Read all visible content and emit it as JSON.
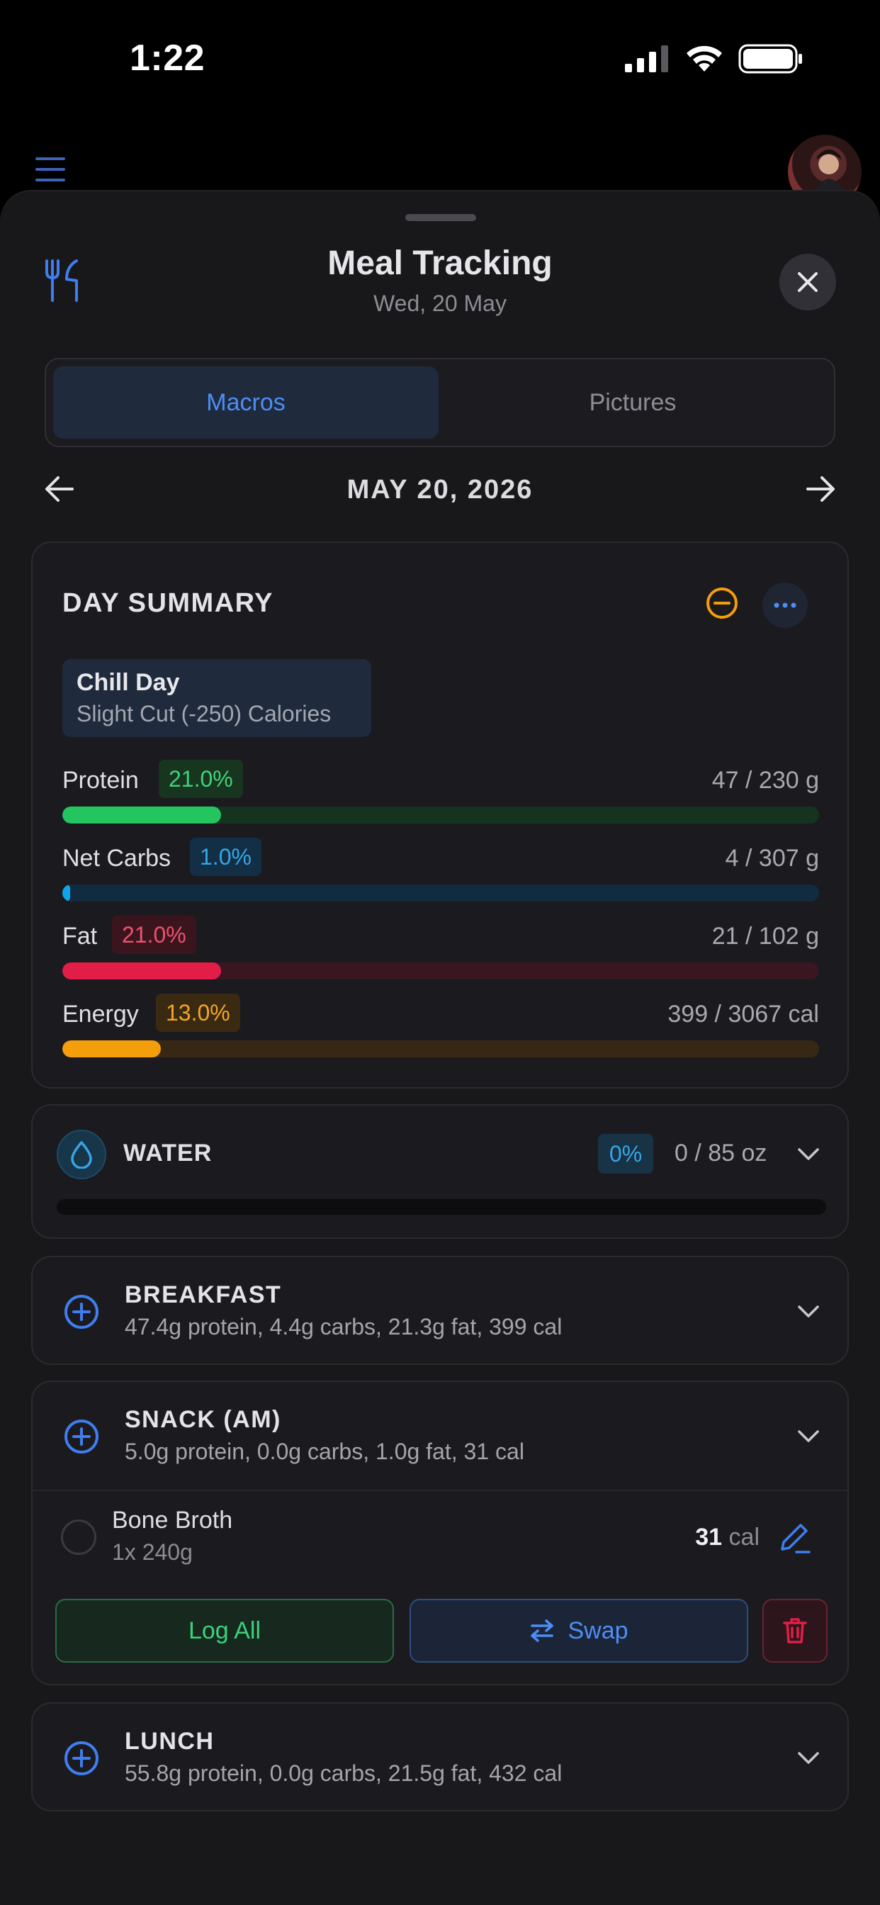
{
  "status_bar": {
    "time": "1:22"
  },
  "header": {
    "title": "Meal Tracking",
    "subtitle": "Wed, 20 May"
  },
  "tabs": [
    {
      "label": "Macros",
      "active": true
    },
    {
      "label": "Pictures",
      "active": false
    }
  ],
  "date_nav": {
    "date": "MAY 20, 2026"
  },
  "day_summary": {
    "title": "DAY SUMMARY",
    "plan_name": "Chill Day",
    "plan_desc": "Slight Cut (-250) Calories",
    "macros": [
      {
        "label": "Protein",
        "percent": "21.0%",
        "value": "47 / 230 g",
        "fill": 0.21,
        "color": "#22c55e"
      },
      {
        "label": "Net Carbs",
        "percent": "1.0%",
        "value": "4 / 307 g",
        "fill": 0.01,
        "color": "#0ea5e9"
      },
      {
        "label": "Fat",
        "percent": "21.0%",
        "value": "21 / 102 g",
        "fill": 0.21,
        "color": "#e11d48"
      },
      {
        "label": "Energy",
        "percent": "13.0%",
        "value": "399 / 3067 cal",
        "fill": 0.13,
        "color": "#f59e0b"
      }
    ]
  },
  "water": {
    "label": "WATER",
    "percent": "0%",
    "value": "0 / 85 oz",
    "fill": 0
  },
  "meals": {
    "breakfast": {
      "name": "BREAKFAST",
      "summary": "47.4g protein, 4.4g carbs, 21.3g fat, 399 cal"
    },
    "snack_am": {
      "name": "SNACK (AM)",
      "summary": "5.0g protein, 0.0g carbs, 1.0g fat, 31 cal",
      "items": [
        {
          "name": "Bone Broth",
          "qty": "1x 240g",
          "cal": "31",
          "cal_unit": "cal"
        }
      ],
      "actions": {
        "log_all": "Log All",
        "swap": "Swap"
      }
    },
    "lunch": {
      "name": "LUNCH",
      "summary": "55.8g protein, 0.0g carbs, 21.5g fat, 432 cal"
    }
  },
  "colors": {
    "accent": "#4d8ef5",
    "protein": "#22c55e",
    "carbs": "#0ea5e9",
    "fat": "#e11d48",
    "energy": "#f59e0b",
    "water": "#36a6e6"
  }
}
